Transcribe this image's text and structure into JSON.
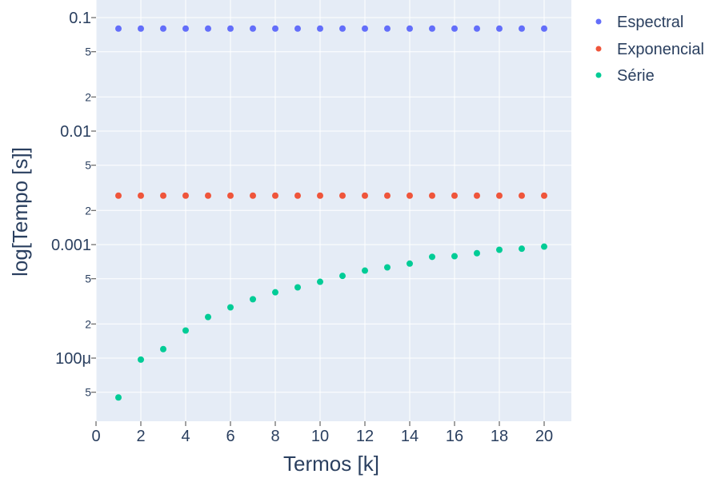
{
  "chart_data": {
    "type": "scatter",
    "xlabel": "Termos [k]",
    "ylabel": "log[Tempo [s]]",
    "y_scale": "log",
    "xlim": [
      -0.2,
      21.2
    ],
    "ylim": [
      3.5e-05,
      0.12
    ],
    "x_ticks": [
      0,
      2,
      4,
      6,
      8,
      10,
      12,
      14,
      16,
      18,
      20
    ],
    "y_major_ticks": [
      {
        "value": 0.0001,
        "label": "100μ"
      },
      {
        "value": 0.001,
        "label": "0.001"
      },
      {
        "value": 0.01,
        "label": "0.01"
      },
      {
        "value": 0.1,
        "label": "0.1"
      }
    ],
    "y_minor_ticks": [
      {
        "value": 5e-05,
        "label": "5"
      },
      {
        "value": 0.0002,
        "label": "2"
      },
      {
        "value": 0.0005,
        "label": "5"
      },
      {
        "value": 0.002,
        "label": "2"
      },
      {
        "value": 0.005,
        "label": "5"
      },
      {
        "value": 0.02,
        "label": "2"
      },
      {
        "value": 0.05,
        "label": "5"
      }
    ],
    "grid": true,
    "legend_position": "top-right",
    "x": [
      1,
      2,
      3,
      4,
      5,
      6,
      7,
      8,
      9,
      10,
      11,
      12,
      13,
      14,
      15,
      16,
      17,
      18,
      19,
      20
    ],
    "series": [
      {
        "name": "Espectral",
        "color": "#636efa",
        "values": [
          0.08,
          0.08,
          0.08,
          0.08,
          0.08,
          0.08,
          0.08,
          0.08,
          0.08,
          0.08,
          0.08,
          0.08,
          0.08,
          0.08,
          0.08,
          0.08,
          0.08,
          0.08,
          0.08,
          0.08
        ]
      },
      {
        "name": "Exponencial",
        "color": "#ef553b",
        "values": [
          0.0027,
          0.0027,
          0.0027,
          0.0027,
          0.0027,
          0.0027,
          0.0027,
          0.0027,
          0.0027,
          0.0027,
          0.0027,
          0.0027,
          0.0027,
          0.0027,
          0.0027,
          0.0027,
          0.0027,
          0.0027,
          0.0027,
          0.0027
        ]
      },
      {
        "name": "Série",
        "color": "#00cc96",
        "values": [
          4.5e-05,
          9.7e-05,
          0.00012,
          0.000175,
          0.00023,
          0.00028,
          0.00033,
          0.00038,
          0.00042,
          0.00047,
          0.00053,
          0.00059,
          0.00063,
          0.00068,
          0.00078,
          0.00079,
          0.00084,
          0.0009,
          0.00092,
          0.00096
        ]
      }
    ]
  }
}
